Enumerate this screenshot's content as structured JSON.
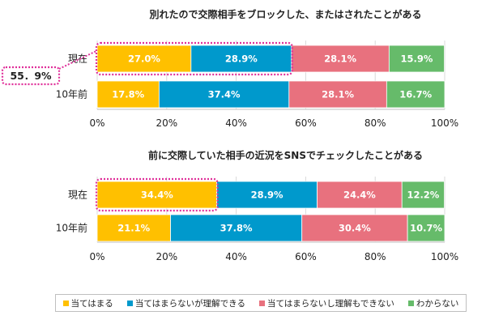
{
  "chart_data": [
    {
      "type": "bar",
      "orientation": "horizontal",
      "stacked": true,
      "title": "別れたので交際相手をブロックした、またはされたことがある",
      "categories": [
        "現在",
        "10年前"
      ],
      "series": [
        {
          "name": "当てはまる",
          "values": [
            27.0,
            17.8
          ],
          "labels": [
            "27.0%",
            "17.8%"
          ]
        },
        {
          "name": "当てはまらないが理解できる",
          "values": [
            28.9,
            37.4
          ],
          "labels": [
            "28.9%",
            "37.4%"
          ]
        },
        {
          "name": "当てはまらないし理解もできない",
          "values": [
            28.1,
            28.1
          ],
          "labels": [
            "28.1%",
            "28.1%"
          ]
        },
        {
          "name": "わからない",
          "values": [
            15.9,
            16.7
          ],
          "labels": [
            "15.9%",
            "16.7%"
          ]
        }
      ],
      "xlim": [
        0,
        100
      ],
      "ticks": [
        "0%",
        "20%",
        "40%",
        "60%",
        "80%",
        "100%"
      ],
      "highlight": {
        "category_index": 0,
        "series_count": 2,
        "value": 55.9
      },
      "callout": "55．9%"
    },
    {
      "type": "bar",
      "orientation": "horizontal",
      "stacked": true,
      "title": "前に交際していた相手の近況をSNSでチェックしたことがある",
      "categories": [
        "現在",
        "10年前"
      ],
      "series": [
        {
          "name": "当てはまる",
          "values": [
            34.4,
            21.1
          ],
          "labels": [
            "34.4%",
            "21.1%"
          ]
        },
        {
          "name": "当てはまらないが理解できる",
          "values": [
            28.9,
            37.8
          ],
          "labels": [
            "28.9%",
            "37.8%"
          ]
        },
        {
          "name": "当てはまらないし理解もできない",
          "values": [
            24.4,
            30.4
          ],
          "labels": [
            "24.4%",
            "30.4%"
          ]
        },
        {
          "name": "わからない",
          "values": [
            12.2,
            10.7
          ],
          "labels": [
            "12.2%",
            "10.7%"
          ]
        }
      ],
      "xlim": [
        0,
        100
      ],
      "ticks": [
        "0%",
        "20%",
        "40%",
        "60%",
        "80%",
        "100%"
      ],
      "highlight": {
        "category_index": 0,
        "series_count": 1,
        "value": 34.4
      }
    }
  ],
  "legend": [
    {
      "label": "当てはまる",
      "color": "#FFC000"
    },
    {
      "label": "当てはまらないが理解できる",
      "color": "#0099CC"
    },
    {
      "label": "当てはまらないし理解もできない",
      "color": "#E8717E"
    },
    {
      "label": "わからない",
      "color": "#66BB6A"
    }
  ],
  "colors": {
    "series": [
      "#FFC000",
      "#0099CC",
      "#E8717E",
      "#66BB6A"
    ],
    "highlight": "#E0309A",
    "grid": "#d9d9d9"
  }
}
